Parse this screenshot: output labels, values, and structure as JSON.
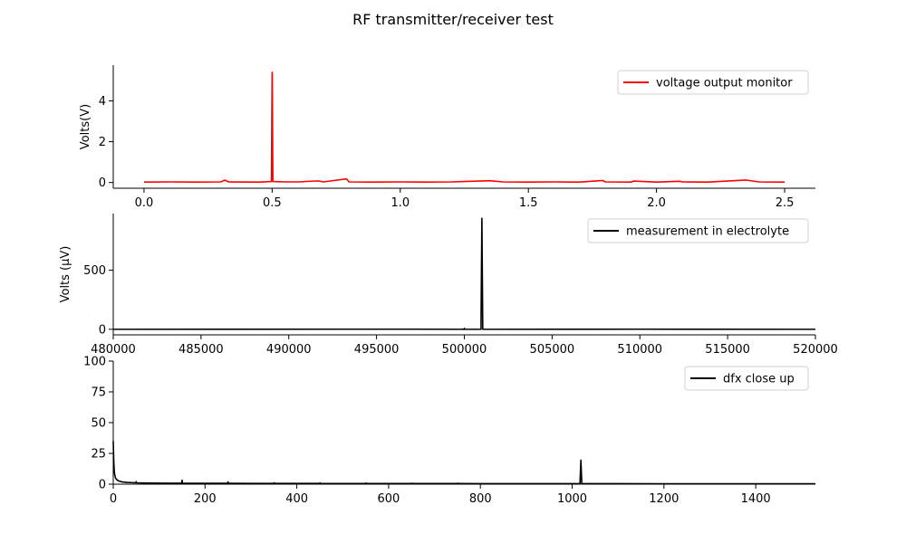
{
  "figure": {
    "title": "RF transmitter/receiver test"
  },
  "chart_data": [
    {
      "type": "line",
      "title": "",
      "xlabel": "",
      "ylabel": "Volts(V)",
      "xlim": [
        -0.12,
        2.62
      ],
      "ylim": [
        -0.28,
        5.75
      ],
      "xticks": [
        0.0,
        0.5,
        1.0,
        1.5,
        2.0,
        2.5
      ],
      "xtick_labels": [
        "0.0",
        "0.5",
        "1.0",
        "1.5",
        "2.0",
        "2.5"
      ],
      "yticks": [
        0,
        2,
        4
      ],
      "ytick_labels": [
        "0",
        "2",
        "4"
      ],
      "grid": false,
      "legend_position": "top-right",
      "series": [
        {
          "name": "voltage output monitor",
          "color": "#ff0000",
          "x": [
            0.0,
            0.1,
            0.2,
            0.3,
            0.315,
            0.33,
            0.45,
            0.497,
            0.5,
            0.503,
            0.55,
            0.6,
            0.68,
            0.7,
            0.79,
            0.8,
            0.9,
            1.0,
            1.1,
            1.2,
            1.35,
            1.4,
            1.5,
            1.6,
            1.7,
            1.79,
            1.8,
            1.9,
            1.91,
            2.0,
            2.09,
            2.1,
            2.2,
            2.35,
            2.4,
            2.5
          ],
          "y": [
            0.02,
            0.03,
            0.02,
            0.03,
            0.12,
            0.03,
            0.02,
            0.05,
            5.4,
            0.05,
            0.03,
            0.03,
            0.08,
            0.03,
            0.18,
            0.03,
            0.02,
            0.03,
            0.02,
            0.03,
            0.09,
            0.03,
            0.02,
            0.03,
            0.02,
            0.1,
            0.03,
            0.02,
            0.07,
            0.02,
            0.06,
            0.03,
            0.02,
            0.12,
            0.03,
            0.02
          ]
        }
      ]
    },
    {
      "type": "line",
      "title": "",
      "xlabel": "",
      "ylabel": "Volts (μV)",
      "xlim": [
        480000,
        520000
      ],
      "ylim": [
        -47,
        980
      ],
      "xticks": [
        480000,
        485000,
        490000,
        495000,
        500000,
        505000,
        510000,
        515000,
        520000
      ],
      "xtick_labels": [
        "480000",
        "485000",
        "490000",
        "495000",
        "500000",
        "505000",
        "510000",
        "515000",
        "520000"
      ],
      "yticks": [
        0,
        500
      ],
      "ytick_labels": [
        "0",
        "500"
      ],
      "grid": false,
      "legend_position": "top-right",
      "series": [
        {
          "name": "measurement in electrolyte",
          "color": "#000000",
          "x": [
            480000,
            493000,
            497000,
            499980,
            500000,
            500020,
            500950,
            501000,
            501050,
            510000,
            520000
          ],
          "y": [
            0,
            1,
            1,
            0,
            8,
            0,
            0,
            940,
            0,
            1,
            0
          ]
        }
      ]
    },
    {
      "type": "line",
      "title": "",
      "xlabel": "",
      "ylabel": "",
      "xlim": [
        0,
        1530
      ],
      "ylim": [
        0,
        100
      ],
      "xticks": [
        0,
        200,
        400,
        600,
        800,
        1000,
        1200,
        1400
      ],
      "xtick_labels": [
        "0",
        "200",
        "400",
        "600",
        "800",
        "1000",
        "1200",
        "1400"
      ],
      "yticks": [
        0,
        25,
        50,
        75,
        100
      ],
      "ytick_labels": [
        "0",
        "25",
        "50",
        "75",
        "100"
      ],
      "grid": false,
      "legend_position": "top-right",
      "series": [
        {
          "name": "dfx close up",
          "color": "#000000",
          "x": [
            0,
            1,
            2,
            3,
            5,
            8,
            12,
            20,
            30,
            45,
            49,
            50,
            51,
            80,
            120,
            149,
            150,
            151,
            200,
            249,
            250,
            251,
            300,
            350,
            351,
            352,
            400,
            450,
            451,
            452,
            500,
            550,
            551,
            552,
            600,
            650,
            651,
            652,
            700,
            750,
            751,
            752,
            800,
            900,
            1000,
            1017,
            1019,
            1021,
            1023,
            1050,
            1100,
            1200,
            1300,
            1400,
            1500,
            1530
          ],
          "y": [
            35,
            20,
            12,
            8,
            5,
            3.5,
            2.6,
            1.8,
            1.4,
            1.2,
            1.1,
            2,
            1.1,
            0.9,
            0.8,
            0.8,
            3.2,
            0.8,
            0.7,
            0.7,
            1.8,
            0.7,
            0.6,
            0.6,
            1.1,
            0.6,
            0.6,
            0.6,
            1,
            0.6,
            0.5,
            0.5,
            0.9,
            0.5,
            0.5,
            0.5,
            0.8,
            0.5,
            0.5,
            0.5,
            0.8,
            0.5,
            0.4,
            0.4,
            0.4,
            0.4,
            19.5,
            0.4,
            0.4,
            0.4,
            0.4,
            0.3,
            0.3,
            0.3,
            0.3,
            0.3
          ]
        }
      ]
    }
  ]
}
